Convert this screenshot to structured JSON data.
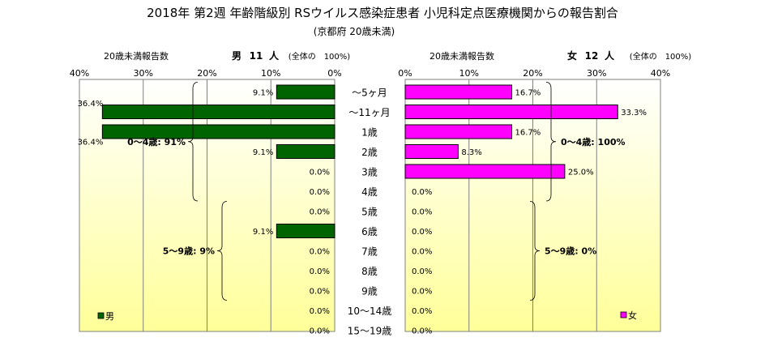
{
  "title": "2018年 第2週 年齢階級別 RSウイルス感染症患者 小児科定点医療機関からの報告割合",
  "subtitle": "(京都府 20歳未満)",
  "chart_data": {
    "type": "bar",
    "orientation": "horizontal-butterfly",
    "categories": [
      "～5ヶ月",
      "～11ヶ月",
      "1歳",
      "2歳",
      "3歳",
      "4歳",
      "5歳",
      "6歳",
      "7歳",
      "8歳",
      "9歳",
      "10～14歳",
      "15～19歳"
    ],
    "xlim": [
      0,
      40
    ],
    "xticks": [
      "40%",
      "30%",
      "20%",
      "10%",
      "0%"
    ],
    "xticks_right": [
      "0%",
      "10%",
      "20%",
      "30%",
      "40%"
    ],
    "series": [
      {
        "name": "男",
        "side": "left",
        "color": "#006400",
        "axis_caption": "20歳未満報告数",
        "header_sex": "男",
        "header_count": "11",
        "header_unit": "人",
        "header_total": "(全体の　100%)",
        "values": [
          9.1,
          36.4,
          36.4,
          9.1,
          0.0,
          0.0,
          0.0,
          9.1,
          0.0,
          0.0,
          0.0,
          0.0,
          0.0
        ],
        "labels": [
          "9.1%",
          "36.4%",
          "36.4%",
          "9.1%",
          "0.0%",
          "0.0%",
          "0.0%",
          "9.1%",
          "0.0%",
          "0.0%",
          "0.0%",
          "0.0%",
          "0.0%"
        ],
        "groups": [
          {
            "label": "0～4歳: 91%",
            "from": 0,
            "to": 5
          },
          {
            "label": "5～9歳: 9%",
            "from": 6,
            "to": 10
          }
        ]
      },
      {
        "name": "女",
        "side": "right",
        "color": "#ff00ff",
        "axis_caption": "20歳未満報告数",
        "header_sex": "女",
        "header_count": "12",
        "header_unit": "人",
        "header_total": "(全体の　100%)",
        "values": [
          16.7,
          33.3,
          16.7,
          8.3,
          25.0,
          0.0,
          0.0,
          0.0,
          0.0,
          0.0,
          0.0,
          0.0,
          0.0
        ],
        "labels": [
          "16.7%",
          "33.3%",
          "16.7%",
          "8.3%",
          "25.0%",
          "0.0%",
          "0.0%",
          "0.0%",
          "0.0%",
          "0.0%",
          "0.0%",
          "0.0%",
          "0.0%"
        ],
        "groups": [
          {
            "label": "0～4歳: 100%",
            "from": 0,
            "to": 5
          },
          {
            "label": "5～9歳: 0%",
            "from": 6,
            "to": 10
          }
        ]
      }
    ],
    "grid": true
  }
}
